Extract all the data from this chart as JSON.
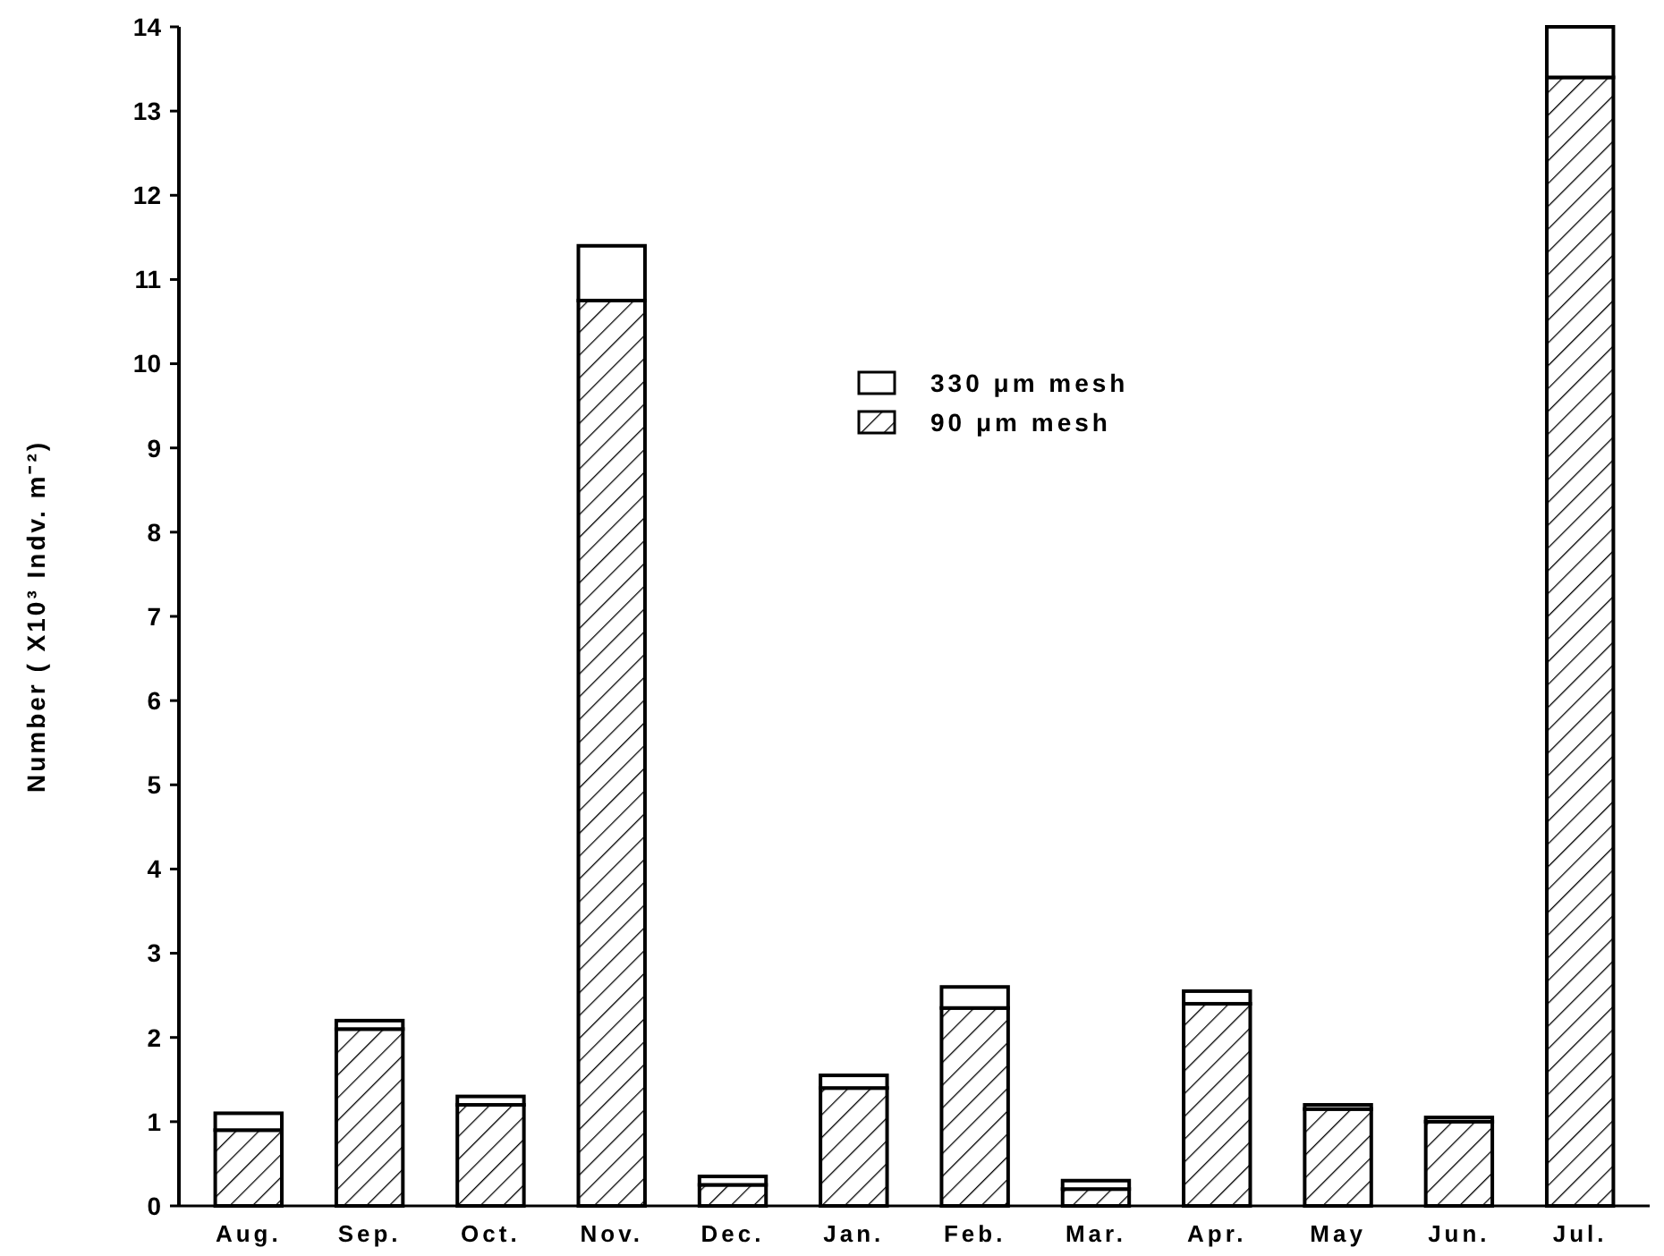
{
  "chart_data": {
    "type": "bar",
    "stacked": true,
    "ylabel": "Number ( X10³ Indv. m⁻²)",
    "categories": [
      "Aug.",
      "Sep.",
      "Oct.",
      "Nov.",
      "Dec.",
      "Jan.",
      "Feb.",
      "Mar.",
      "Apr.",
      "May",
      "Jun.",
      "Jul."
    ],
    "series": [
      {
        "name": "90 μm mesh",
        "color": "#000000",
        "values": [
          0.9,
          2.1,
          1.2,
          10.75,
          0.25,
          1.4,
          2.35,
          0.2,
          2.4,
          1.15,
          1.0,
          13.4
        ]
      },
      {
        "name": "330 μm mesh",
        "color": "#ffffff",
        "values": [
          0.2,
          0.1,
          0.1,
          0.65,
          0.1,
          0.15,
          0.25,
          0.1,
          0.15,
          0.05,
          0.05,
          0.6
        ]
      }
    ],
    "ylim": [
      0,
      14
    ],
    "yticks": [
      0,
      1,
      2,
      3,
      4,
      5,
      6,
      7,
      8,
      9,
      10,
      11,
      12,
      13,
      14
    ],
    "grid": false,
    "legend": "top"
  }
}
